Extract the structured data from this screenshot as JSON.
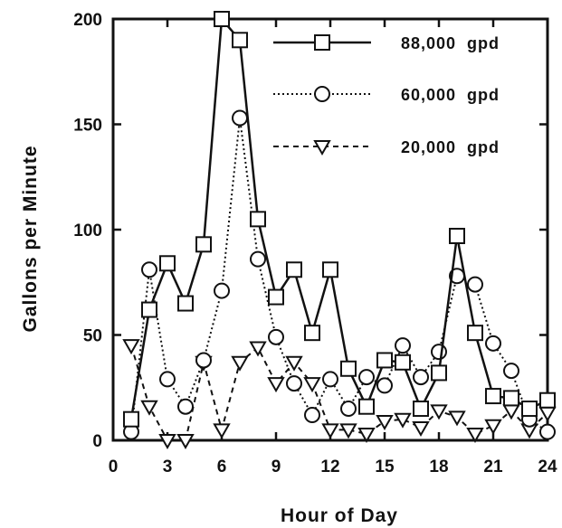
{
  "chart_data": {
    "type": "line",
    "xlabel": "Hour of Day",
    "ylabel": "Gallons per Minute",
    "xlim": [
      0,
      24
    ],
    "ylim": [
      0,
      200
    ],
    "xticks": [
      "0",
      "3",
      "6",
      "9",
      "12",
      "15",
      "18",
      "21",
      "24"
    ],
    "yticks": [
      "0",
      "50",
      "100",
      "150",
      "200"
    ],
    "grid": false,
    "legend_position": "top-right",
    "x": [
      1,
      2,
      3,
      4,
      5,
      6,
      7,
      8,
      9,
      10,
      11,
      12,
      13,
      14,
      15,
      16,
      17,
      18,
      19,
      20,
      21,
      22,
      23,
      24
    ],
    "series": [
      {
        "name": "88,000 gpd",
        "marker": "square",
        "line_style": "solid",
        "values": [
          10,
          62,
          84,
          65,
          93,
          200,
          190,
          105,
          68,
          81,
          51,
          81,
          34,
          16,
          38,
          37,
          15,
          32,
          97,
          51,
          21,
          20,
          15,
          19
        ]
      },
      {
        "name": "60,000 gpd",
        "marker": "circle",
        "line_style": "dotted",
        "values": [
          4,
          81,
          29,
          16,
          38,
          71,
          153,
          86,
          49,
          27,
          12,
          29,
          15,
          30,
          26,
          45,
          30,
          42,
          78,
          74,
          46,
          33,
          10,
          4
        ]
      },
      {
        "name": "20,000 gpd",
        "marker": "triangle-down",
        "line_style": "dashed",
        "values": [
          45,
          16,
          0,
          0,
          37,
          5,
          37,
          44,
          27,
          37,
          27,
          5,
          5,
          3,
          9,
          10,
          6,
          14,
          11,
          3,
          7,
          14,
          5,
          13
        ]
      }
    ]
  }
}
